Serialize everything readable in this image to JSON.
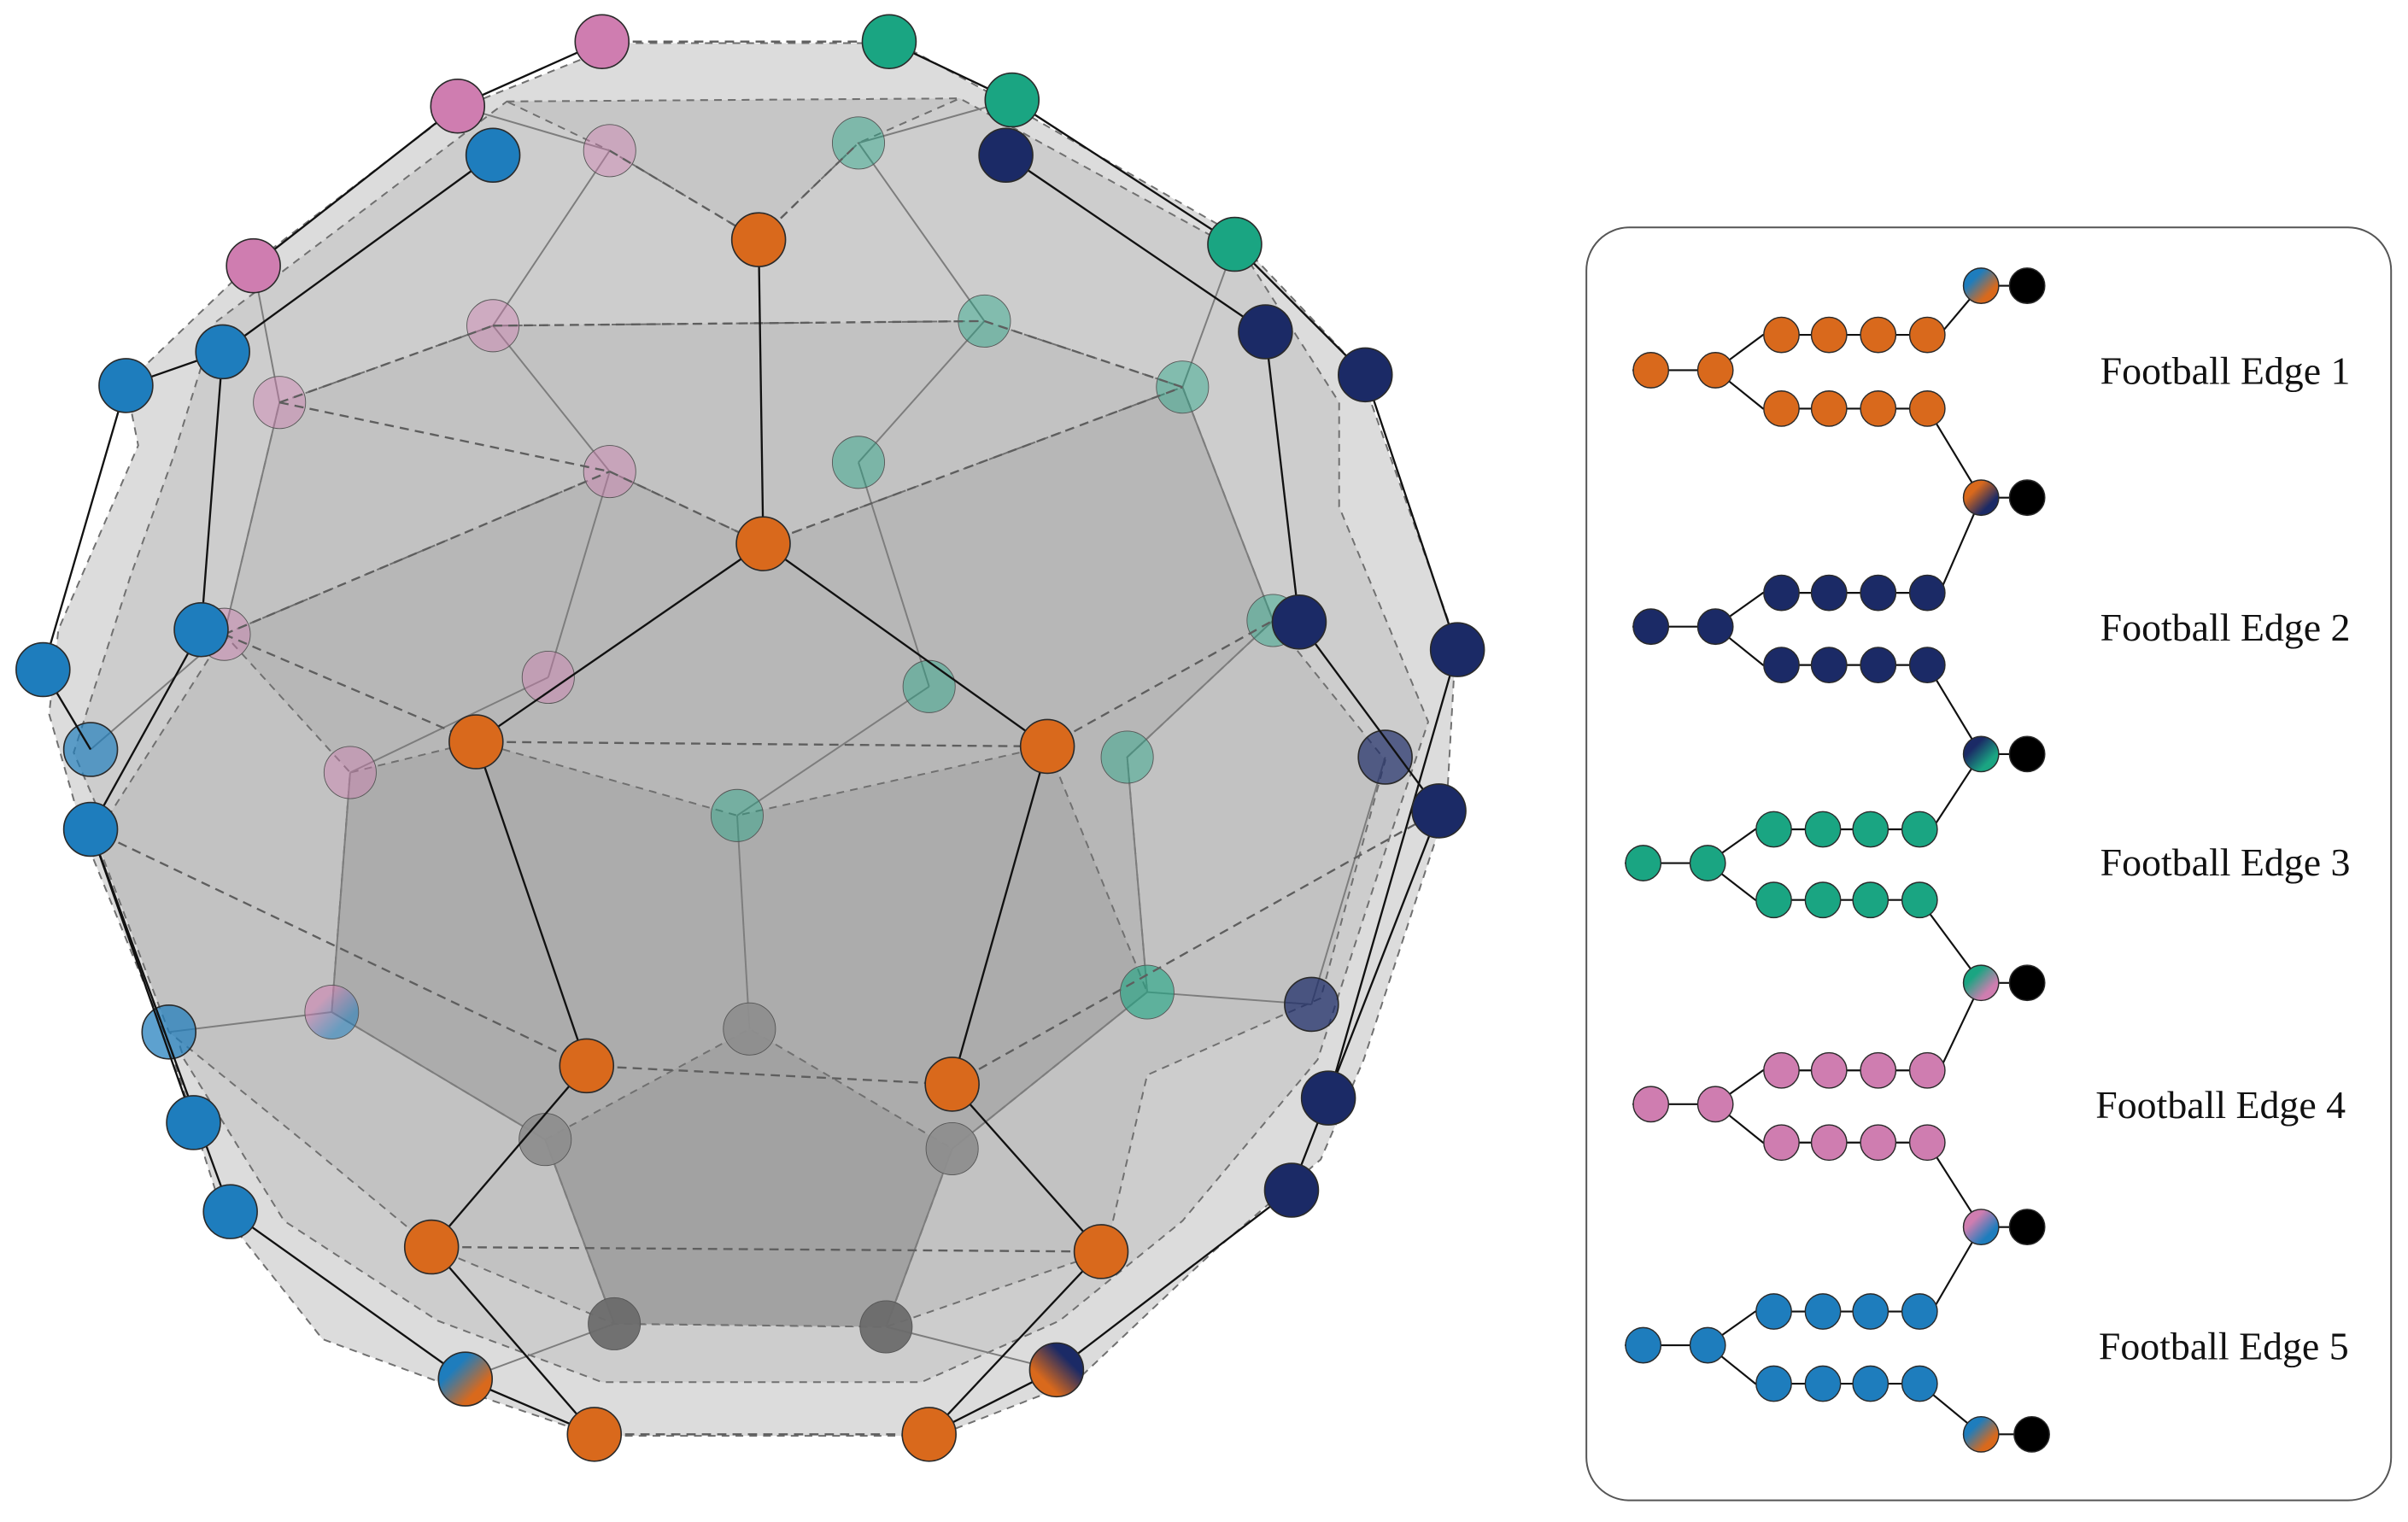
{
  "palette": {
    "orange": "#D9691C",
    "navy": "#1B2A66",
    "green": "#1AA582",
    "pink": "#CF7DB0",
    "blue": "#1E7DBD",
    "gray": "#8E8E8E",
    "dark_gray": "#6C6C6C",
    "terminal": "#000000"
  },
  "legend": {
    "items": [
      {
        "label": "Football Edge 1",
        "color": "#D9691C"
      },
      {
        "label": "Football Edge 2",
        "color": "#1B2A66"
      },
      {
        "label": "Football Edge 3",
        "color": "#1AA582"
      },
      {
        "label": "Football Edge 4",
        "color": "#CF7DB0"
      },
      {
        "label": "Football Edge 5",
        "color": "#1E7DBD"
      }
    ]
  }
}
